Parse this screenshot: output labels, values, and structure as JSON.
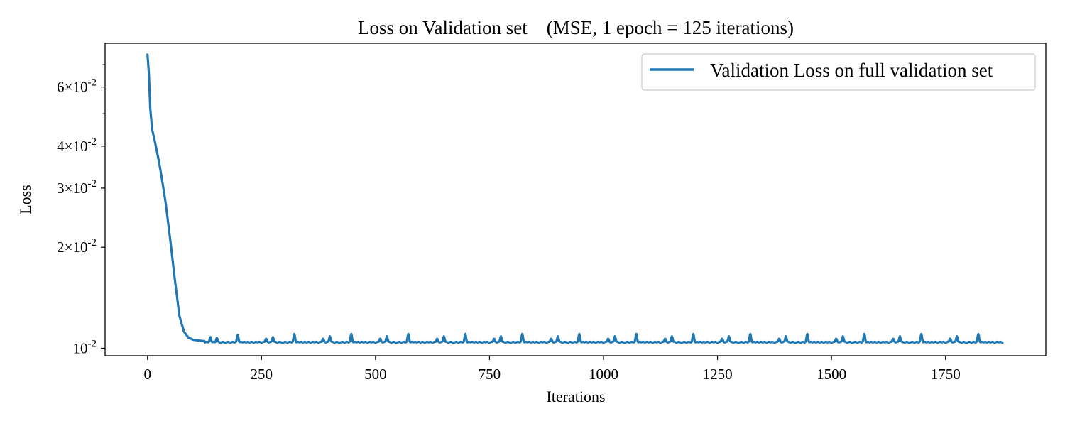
{
  "chart_data": {
    "type": "line",
    "title": "Loss on Validation set    (MSE, 1 epoch = 125 iterations)",
    "xlabel": "Iterations",
    "ylabel": "Loss",
    "xlim": [
      -93,
      1970
    ],
    "ylim": [
      0.0095,
      0.081
    ],
    "yscale": "log",
    "grid": false,
    "legend_position": "top-right",
    "x_ticks": [
      0,
      250,
      500,
      750,
      1000,
      1250,
      1500,
      1750
    ],
    "x_tick_labels": [
      "0",
      "250",
      "500",
      "750",
      "1000",
      "1250",
      "1500",
      "1750"
    ],
    "y_ticks": [
      {
        "value": 0.01,
        "mantissa": "",
        "exp": "-2"
      },
      {
        "value": 0.02,
        "mantissa": "2",
        "exp": "-2"
      },
      {
        "value": 0.03,
        "mantissa": "3",
        "exp": "-2"
      },
      {
        "value": 0.04,
        "mantissa": "4",
        "exp": "-2"
      },
      {
        "value": 0.06,
        "mantissa": "6",
        "exp": "-2"
      }
    ],
    "y_minor_ticks": [
      0.05,
      0.07
    ],
    "series": [
      {
        "name": "Validation Loss on full validation set",
        "color": "#1f77b4",
        "x": [
          0,
          3,
          6,
          10,
          15,
          20,
          25,
          30,
          40,
          50,
          60,
          70,
          80,
          90,
          100,
          110,
          125
        ],
        "y": [
          0.075,
          0.066,
          0.052,
          0.045,
          0.042,
          0.039,
          0.036,
          0.033,
          0.027,
          0.021,
          0.016,
          0.0125,
          0.0112,
          0.01075,
          0.0106,
          0.01055,
          0.0105
        ],
        "x_end": 1875,
        "baseline": 0.0104,
        "small_bumps": {
          "offsets": [
            5,
            12,
            20,
            30,
            40,
            52,
            62,
            70,
            80,
            87,
            95,
            103,
            113,
            120
          ],
          "height": 5e-05
        },
        "peaks": [
          {
            "x": 138,
            "y": 0.01075
          },
          {
            "x": 152,
            "y": 0.01072
          },
          {
            "x": 198,
            "y": 0.01095
          },
          {
            "x": 260,
            "y": 0.01065
          },
          {
            "x": 275,
            "y": 0.01078
          },
          {
            "x": 322,
            "y": 0.011
          },
          {
            "x": 385,
            "y": 0.01065
          },
          {
            "x": 400,
            "y": 0.01085
          },
          {
            "x": 447,
            "y": 0.011
          },
          {
            "x": 510,
            "y": 0.01065
          },
          {
            "x": 525,
            "y": 0.01085
          },
          {
            "x": 572,
            "y": 0.011
          },
          {
            "x": 635,
            "y": 0.01065
          },
          {
            "x": 650,
            "y": 0.01085
          },
          {
            "x": 697,
            "y": 0.011
          },
          {
            "x": 760,
            "y": 0.01065
          },
          {
            "x": 775,
            "y": 0.01085
          },
          {
            "x": 822,
            "y": 0.011
          },
          {
            "x": 885,
            "y": 0.01065
          },
          {
            "x": 900,
            "y": 0.01085
          },
          {
            "x": 947,
            "y": 0.011
          },
          {
            "x": 1010,
            "y": 0.01065
          },
          {
            "x": 1025,
            "y": 0.01085
          },
          {
            "x": 1072,
            "y": 0.011
          },
          {
            "x": 1135,
            "y": 0.01065
          },
          {
            "x": 1150,
            "y": 0.01085
          },
          {
            "x": 1197,
            "y": 0.011
          },
          {
            "x": 1260,
            "y": 0.01065
          },
          {
            "x": 1275,
            "y": 0.01085
          },
          {
            "x": 1322,
            "y": 0.011
          },
          {
            "x": 1385,
            "y": 0.01065
          },
          {
            "x": 1400,
            "y": 0.01085
          },
          {
            "x": 1447,
            "y": 0.011
          },
          {
            "x": 1510,
            "y": 0.01065
          },
          {
            "x": 1525,
            "y": 0.01085
          },
          {
            "x": 1572,
            "y": 0.011
          },
          {
            "x": 1635,
            "y": 0.01065
          },
          {
            "x": 1650,
            "y": 0.01085
          },
          {
            "x": 1697,
            "y": 0.011
          },
          {
            "x": 1760,
            "y": 0.01065
          },
          {
            "x": 1775,
            "y": 0.01085
          },
          {
            "x": 1822,
            "y": 0.011
          }
        ]
      }
    ]
  }
}
